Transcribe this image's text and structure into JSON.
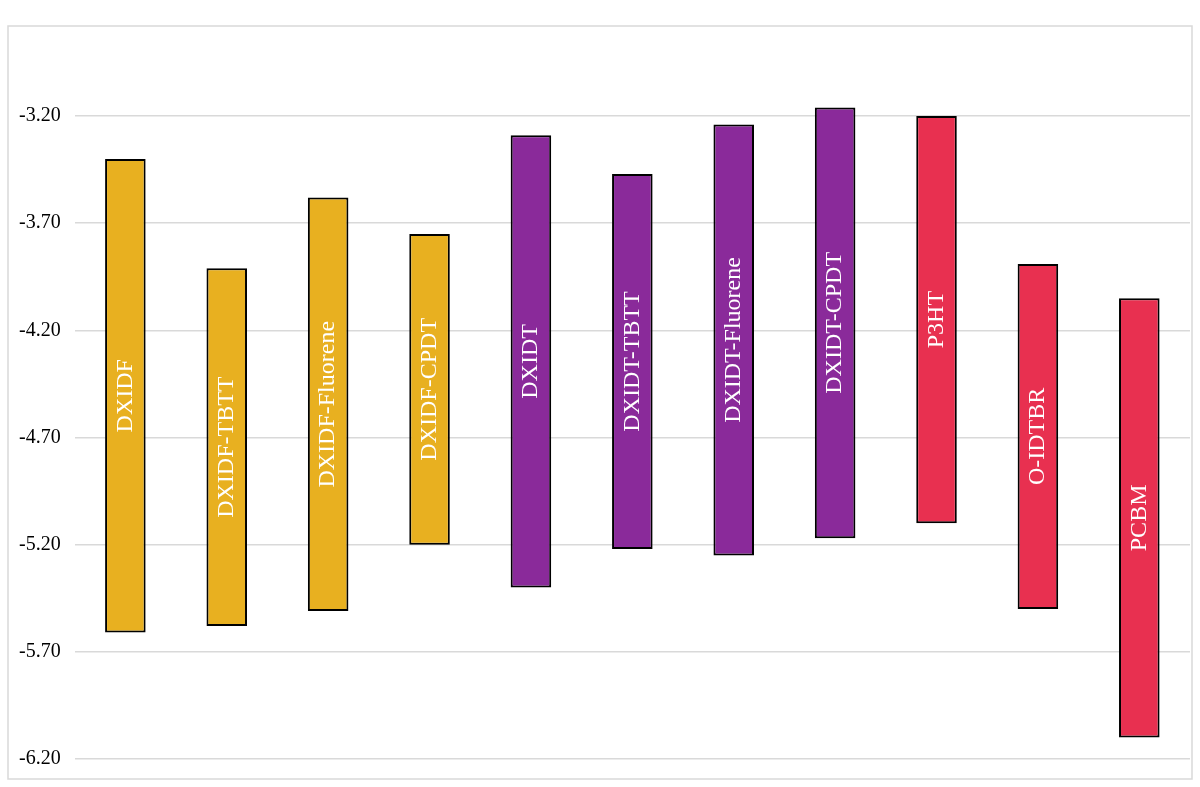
{
  "chart_data": {
    "type": "bar",
    "categories": [
      "DXIDF",
      "DXIDF-TBTT",
      "DXIDF-Fluorene",
      "DXIDF-CPDT",
      "DXIDT",
      "DXIDT-TBTT",
      "DXIDT-Fluorene",
      "DXIDT-CPDT",
      "P3HT",
      "O-IDTBR",
      "PCBM"
    ],
    "base": [
      -5.61,
      -5.58,
      -5.51,
      -5.2,
      -5.4,
      -5.22,
      -5.25,
      -5.17,
      -5.1,
      -5.5,
      -6.1
    ],
    "values": [
      2.21,
      1.67,
      1.93,
      1.45,
      2.11,
      1.75,
      2.01,
      2.01,
      1.9,
      1.61,
      2.05
    ],
    "colors": [
      "#e8b020",
      "#e8b020",
      "#e8b020",
      "#e8b020",
      "#8a2a9a",
      "#8a2a9a",
      "#8a2a9a",
      "#8a2a9a",
      "#e83050",
      "#e83050",
      "#e83050"
    ],
    "ylim": [
      -6.2,
      -2.78
    ],
    "yticks": [
      {
        "value": -3.2,
        "label": "-3.20"
      },
      {
        "value": -3.7,
        "label": "-3.70"
      },
      {
        "value": -4.2,
        "label": "-4.20"
      },
      {
        "value": -4.7,
        "label": "-4.70"
      },
      {
        "value": -5.2,
        "label": "-5.20"
      },
      {
        "value": -5.7,
        "label": "-5.70"
      },
      {
        "value": -6.2,
        "label": "-6.20"
      }
    ],
    "grid": "y",
    "legend": false,
    "tick_labels": "y"
  }
}
